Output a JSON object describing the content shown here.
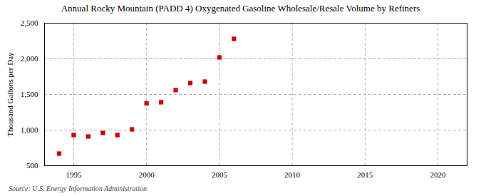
{
  "chart_data": {
    "type": "scatter",
    "title": "Annual Rocky Mountain (PADD 4) Oxygenated Gasoline Wholesale/Resale Volume by Refiners",
    "ylabel": "Thousand Gallons per Day",
    "source": "Source: U.S. Energy Information Administration",
    "x": [
      1994,
      1995,
      1996,
      1997,
      1998,
      1999,
      2000,
      2001,
      2002,
      2003,
      2004,
      2005,
      2006
    ],
    "values": [
      670,
      930,
      910,
      960,
      930,
      1010,
      1375,
      1390,
      1560,
      1660,
      1680,
      2020,
      2280
    ],
    "color": "#cc0000",
    "marker": "square",
    "xlim": [
      1993,
      2022
    ],
    "ylim": [
      500,
      2500
    ],
    "xticks": [
      1995,
      2000,
      2005,
      2010,
      2015,
      2020
    ],
    "yticks": [
      500,
      {
        "value": 1000,
        "label": "1,000"
      },
      {
        "value": 1500,
        "label": "1,500"
      },
      {
        "value": 2000,
        "label": "2,000"
      },
      {
        "value": 2500,
        "label": "2,500"
      }
    ],
    "grid": true
  }
}
